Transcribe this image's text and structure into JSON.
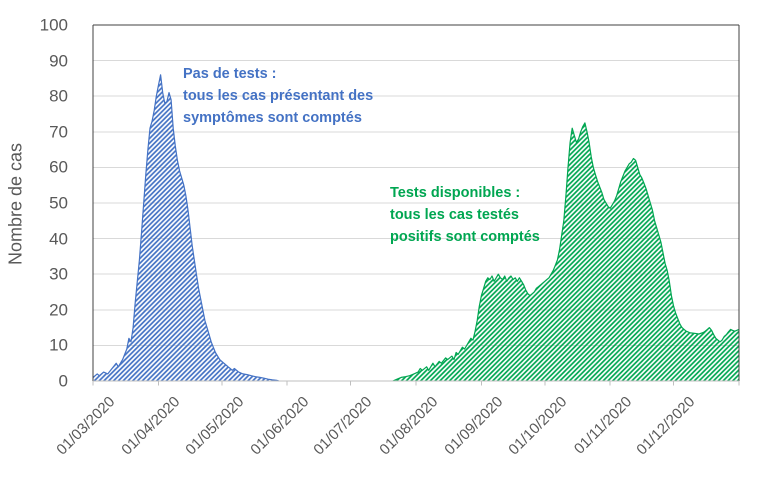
{
  "colors": {
    "background": "#FFFFFF",
    "axis_text": "#595959",
    "gridline": "#D9D9D9",
    "plot_border": "#404040",
    "axis_line": "#BFBFBF",
    "blue": "#4472C4",
    "green": "#00A651"
  },
  "chart_data": {
    "type": "area",
    "ylabel": "Nombre de cas",
    "ylim": [
      0,
      100
    ],
    "yticks": [
      0,
      10,
      20,
      30,
      40,
      50,
      60,
      70,
      80,
      90,
      100
    ],
    "grid": "horizontal",
    "legend": "none",
    "x_unit": "days since 01/03/2020",
    "x_domain_days": [
      0,
      306
    ],
    "x_tick_days": [
      0,
      31,
      61,
      92,
      122,
      153,
      184,
      214,
      245,
      275
    ],
    "x_tick_labels": [
      "01/03/2020",
      "01/04/2020",
      "01/05/2020",
      "01/06/2020",
      "01/07/2020",
      "01/08/2020",
      "01/09/2020",
      "01/10/2020",
      "01/11/2020",
      "01/12/2020"
    ],
    "series": [
      {
        "id": "pas-de-tests",
        "color": "#4472C4",
        "fill_pattern": "diagonal-hatch",
        "annotation": [
          "Pas de tests :",
          "tous les cas présentant des",
          "symptômes sont comptés"
        ],
        "points": [
          [
            0,
            1
          ],
          [
            2,
            2
          ],
          [
            3,
            1.5
          ],
          [
            5,
            2.5
          ],
          [
            7,
            2
          ],
          [
            9,
            3.5
          ],
          [
            11,
            5
          ],
          [
            12,
            4
          ],
          [
            14,
            6
          ],
          [
            16,
            9
          ],
          [
            17,
            12
          ],
          [
            18,
            11
          ],
          [
            19,
            15
          ],
          [
            20,
            22
          ],
          [
            21,
            28
          ],
          [
            22,
            34
          ],
          [
            23,
            42
          ],
          [
            24,
            50
          ],
          [
            25,
            58
          ],
          [
            26,
            65
          ],
          [
            27,
            71
          ],
          [
            28,
            73
          ],
          [
            29,
            76
          ],
          [
            30,
            80
          ],
          [
            31,
            83
          ],
          [
            32,
            86
          ],
          [
            33,
            81
          ],
          [
            34,
            78
          ],
          [
            35,
            78.5
          ],
          [
            36,
            81
          ],
          [
            37,
            79
          ],
          [
            38,
            71
          ],
          [
            39,
            66
          ],
          [
            40,
            62
          ],
          [
            41,
            59
          ],
          [
            42,
            57
          ],
          [
            43,
            55
          ],
          [
            44,
            52
          ],
          [
            45,
            48
          ],
          [
            46,
            43
          ],
          [
            47,
            38
          ],
          [
            48,
            34
          ],
          [
            49,
            30
          ],
          [
            50,
            26
          ],
          [
            51,
            23
          ],
          [
            52,
            20
          ],
          [
            53,
            17
          ],
          [
            54,
            15
          ],
          [
            55,
            13
          ],
          [
            56,
            11
          ],
          [
            57,
            9.5
          ],
          [
            58,
            8
          ],
          [
            59,
            7
          ],
          [
            60,
            6
          ],
          [
            61,
            5.5
          ],
          [
            62,
            5
          ],
          [
            63,
            4.5
          ],
          [
            64,
            4
          ],
          [
            65,
            3.5
          ],
          [
            66,
            3
          ],
          [
            67,
            3.5
          ],
          [
            68,
            3
          ],
          [
            69,
            2.5
          ],
          [
            71,
            2
          ],
          [
            73,
            1.8
          ],
          [
            75,
            1.5
          ],
          [
            77,
            1.2
          ],
          [
            79,
            1
          ],
          [
            81,
            0.8
          ],
          [
            83,
            0.5
          ],
          [
            85,
            0.3
          ],
          [
            87,
            0.2
          ],
          [
            88,
            0
          ]
        ]
      },
      {
        "id": "tests-disponibles",
        "color": "#00A651",
        "fill_pattern": "diagonal-hatch",
        "annotation": [
          "Tests disponibles :",
          "tous les cas testés",
          "positifs sont comptés"
        ],
        "points": [
          [
            142,
            0
          ],
          [
            144,
            0.5
          ],
          [
            146,
            1
          ],
          [
            148,
            1.2
          ],
          [
            150,
            1.5
          ],
          [
            152,
            2
          ],
          [
            154,
            2.5
          ],
          [
            155,
            3.5
          ],
          [
            156,
            3
          ],
          [
            158,
            4
          ],
          [
            159,
            3
          ],
          [
            161,
            5
          ],
          [
            162,
            4
          ],
          [
            164,
            5.5
          ],
          [
            165,
            5
          ],
          [
            167,
            6.5
          ],
          [
            168,
            6
          ],
          [
            170,
            7
          ],
          [
            171,
            6
          ],
          [
            172,
            8
          ],
          [
            173,
            7.5
          ],
          [
            175,
            9.5
          ],
          [
            176,
            9
          ],
          [
            178,
            11
          ],
          [
            179,
            12
          ],
          [
            180,
            11.5
          ],
          [
            181,
            14
          ],
          [
            182,
            17
          ],
          [
            183,
            21
          ],
          [
            184,
            24
          ],
          [
            185,
            26
          ],
          [
            186,
            28
          ],
          [
            187,
            29
          ],
          [
            188,
            28.5
          ],
          [
            189,
            29.5
          ],
          [
            190,
            28
          ],
          [
            191,
            29
          ],
          [
            192,
            30
          ],
          [
            193,
            29
          ],
          [
            194,
            28.5
          ],
          [
            195,
            29.5
          ],
          [
            196,
            28
          ],
          [
            197,
            29
          ],
          [
            198,
            29.5
          ],
          [
            199,
            28.5
          ],
          [
            200,
            29
          ],
          [
            201,
            28
          ],
          [
            202,
            29
          ],
          [
            203,
            28
          ],
          [
            204,
            27
          ],
          [
            205,
            25.5
          ],
          [
            206,
            24.5
          ],
          [
            207,
            24
          ],
          [
            208,
            24.5
          ],
          [
            209,
            25
          ],
          [
            210,
            26
          ],
          [
            211,
            26.5
          ],
          [
            212,
            27
          ],
          [
            213,
            27.5
          ],
          [
            214,
            28
          ],
          [
            215,
            28.5
          ],
          [
            216,
            29
          ],
          [
            217,
            30
          ],
          [
            218,
            31
          ],
          [
            219,
            32.5
          ],
          [
            220,
            34
          ],
          [
            221,
            37
          ],
          [
            222,
            41
          ],
          [
            223,
            45
          ],
          [
            224,
            52
          ],
          [
            225,
            60
          ],
          [
            226,
            67
          ],
          [
            227,
            71
          ],
          [
            228,
            69
          ],
          [
            229,
            67
          ],
          [
            230,
            68
          ],
          [
            231,
            70
          ],
          [
            232,
            71.5
          ],
          [
            233,
            72.5
          ],
          [
            234,
            70
          ],
          [
            235,
            67
          ],
          [
            236,
            63
          ],
          [
            237,
            60
          ],
          [
            238,
            58
          ],
          [
            239,
            56
          ],
          [
            240,
            54.5
          ],
          [
            241,
            53
          ],
          [
            242,
            51
          ],
          [
            243,
            50
          ],
          [
            244,
            49
          ],
          [
            245,
            48.5
          ],
          [
            246,
            49.5
          ],
          [
            247,
            50.5
          ],
          [
            248,
            52
          ],
          [
            249,
            54
          ],
          [
            250,
            56
          ],
          [
            251,
            57.5
          ],
          [
            252,
            59
          ],
          [
            253,
            60
          ],
          [
            254,
            61
          ],
          [
            255,
            61.5
          ],
          [
            256,
            62.5
          ],
          [
            257,
            62
          ],
          [
            258,
            60
          ],
          [
            259,
            58
          ],
          [
            260,
            57
          ],
          [
            261,
            55.5
          ],
          [
            262,
            54
          ],
          [
            263,
            52
          ],
          [
            264,
            50
          ],
          [
            265,
            48
          ],
          [
            266,
            45
          ],
          [
            267,
            43
          ],
          [
            268,
            41
          ],
          [
            269,
            39
          ],
          [
            270,
            36
          ],
          [
            271,
            33
          ],
          [
            272,
            31
          ],
          [
            273,
            28
          ],
          [
            274,
            24
          ],
          [
            275,
            21
          ],
          [
            276,
            19
          ],
          [
            277,
            17.5
          ],
          [
            278,
            16
          ],
          [
            279,
            15
          ],
          [
            280,
            14.5
          ],
          [
            281,
            14
          ],
          [
            283,
            13.5
          ],
          [
            285,
            13.4
          ],
          [
            287,
            13.2
          ],
          [
            289,
            13.6
          ],
          [
            290,
            14
          ],
          [
            291,
            14.5
          ],
          [
            292,
            15
          ],
          [
            293,
            14.2
          ],
          [
            294,
            13
          ],
          [
            295,
            12
          ],
          [
            296,
            11.5
          ],
          [
            297,
            11
          ],
          [
            298,
            11.5
          ],
          [
            299,
            12.5
          ],
          [
            300,
            13
          ],
          [
            301,
            13.8
          ],
          [
            302,
            14.5
          ],
          [
            303,
            14.2
          ],
          [
            304,
            14
          ],
          [
            306,
            14.5
          ]
        ]
      }
    ]
  }
}
